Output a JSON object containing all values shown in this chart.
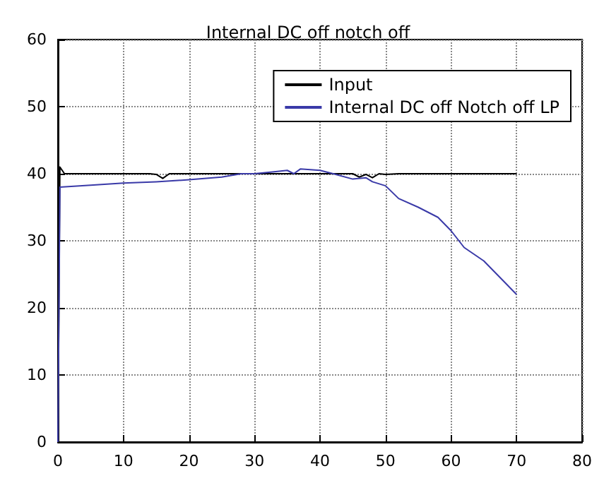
{
  "chart_data": {
    "type": "line",
    "title": "Internal DC off notch off",
    "xlim": [
      0,
      80
    ],
    "ylim": [
      0,
      60
    ],
    "xticks": [
      0,
      10,
      20,
      30,
      40,
      50,
      60,
      70,
      80
    ],
    "yticks": [
      0,
      10,
      20,
      30,
      40,
      50,
      60
    ],
    "grid": true,
    "legend": "top right",
    "line_style": "solid",
    "marker": "none",
    "series": [
      {
        "name": "Input",
        "color": "#000000",
        "x": [
          0,
          0.3,
          1,
          5,
          10,
          14,
          15,
          16,
          17,
          20,
          25,
          30,
          35,
          40,
          45,
          46,
          47,
          48,
          49,
          50,
          52,
          55,
          60,
          65,
          70
        ],
        "values": [
          0,
          41,
          40,
          40,
          40,
          40,
          39.9,
          39.3,
          40,
          40,
          40,
          40,
          40,
          40,
          40,
          39.5,
          39.9,
          39.4,
          40,
          39.9,
          40,
          40,
          40,
          40,
          40
        ]
      },
      {
        "name": "Internal DC off Notch off LP",
        "color": "#3a3aa8",
        "x": [
          0,
          0.3,
          5,
          10,
          15,
          20,
          25,
          28,
          30,
          33,
          35,
          36,
          37,
          40,
          42,
          45,
          47,
          48,
          50,
          52,
          55,
          58,
          60,
          62,
          65,
          70
        ],
        "values": [
          0,
          38,
          38.3,
          38.6,
          38.8,
          39.1,
          39.5,
          40,
          40,
          40.3,
          40.5,
          40,
          40.7,
          40.5,
          40,
          39.2,
          39.4,
          38.8,
          38.2,
          36.3,
          35,
          33.5,
          31.5,
          29,
          27,
          22
        ]
      }
    ]
  }
}
